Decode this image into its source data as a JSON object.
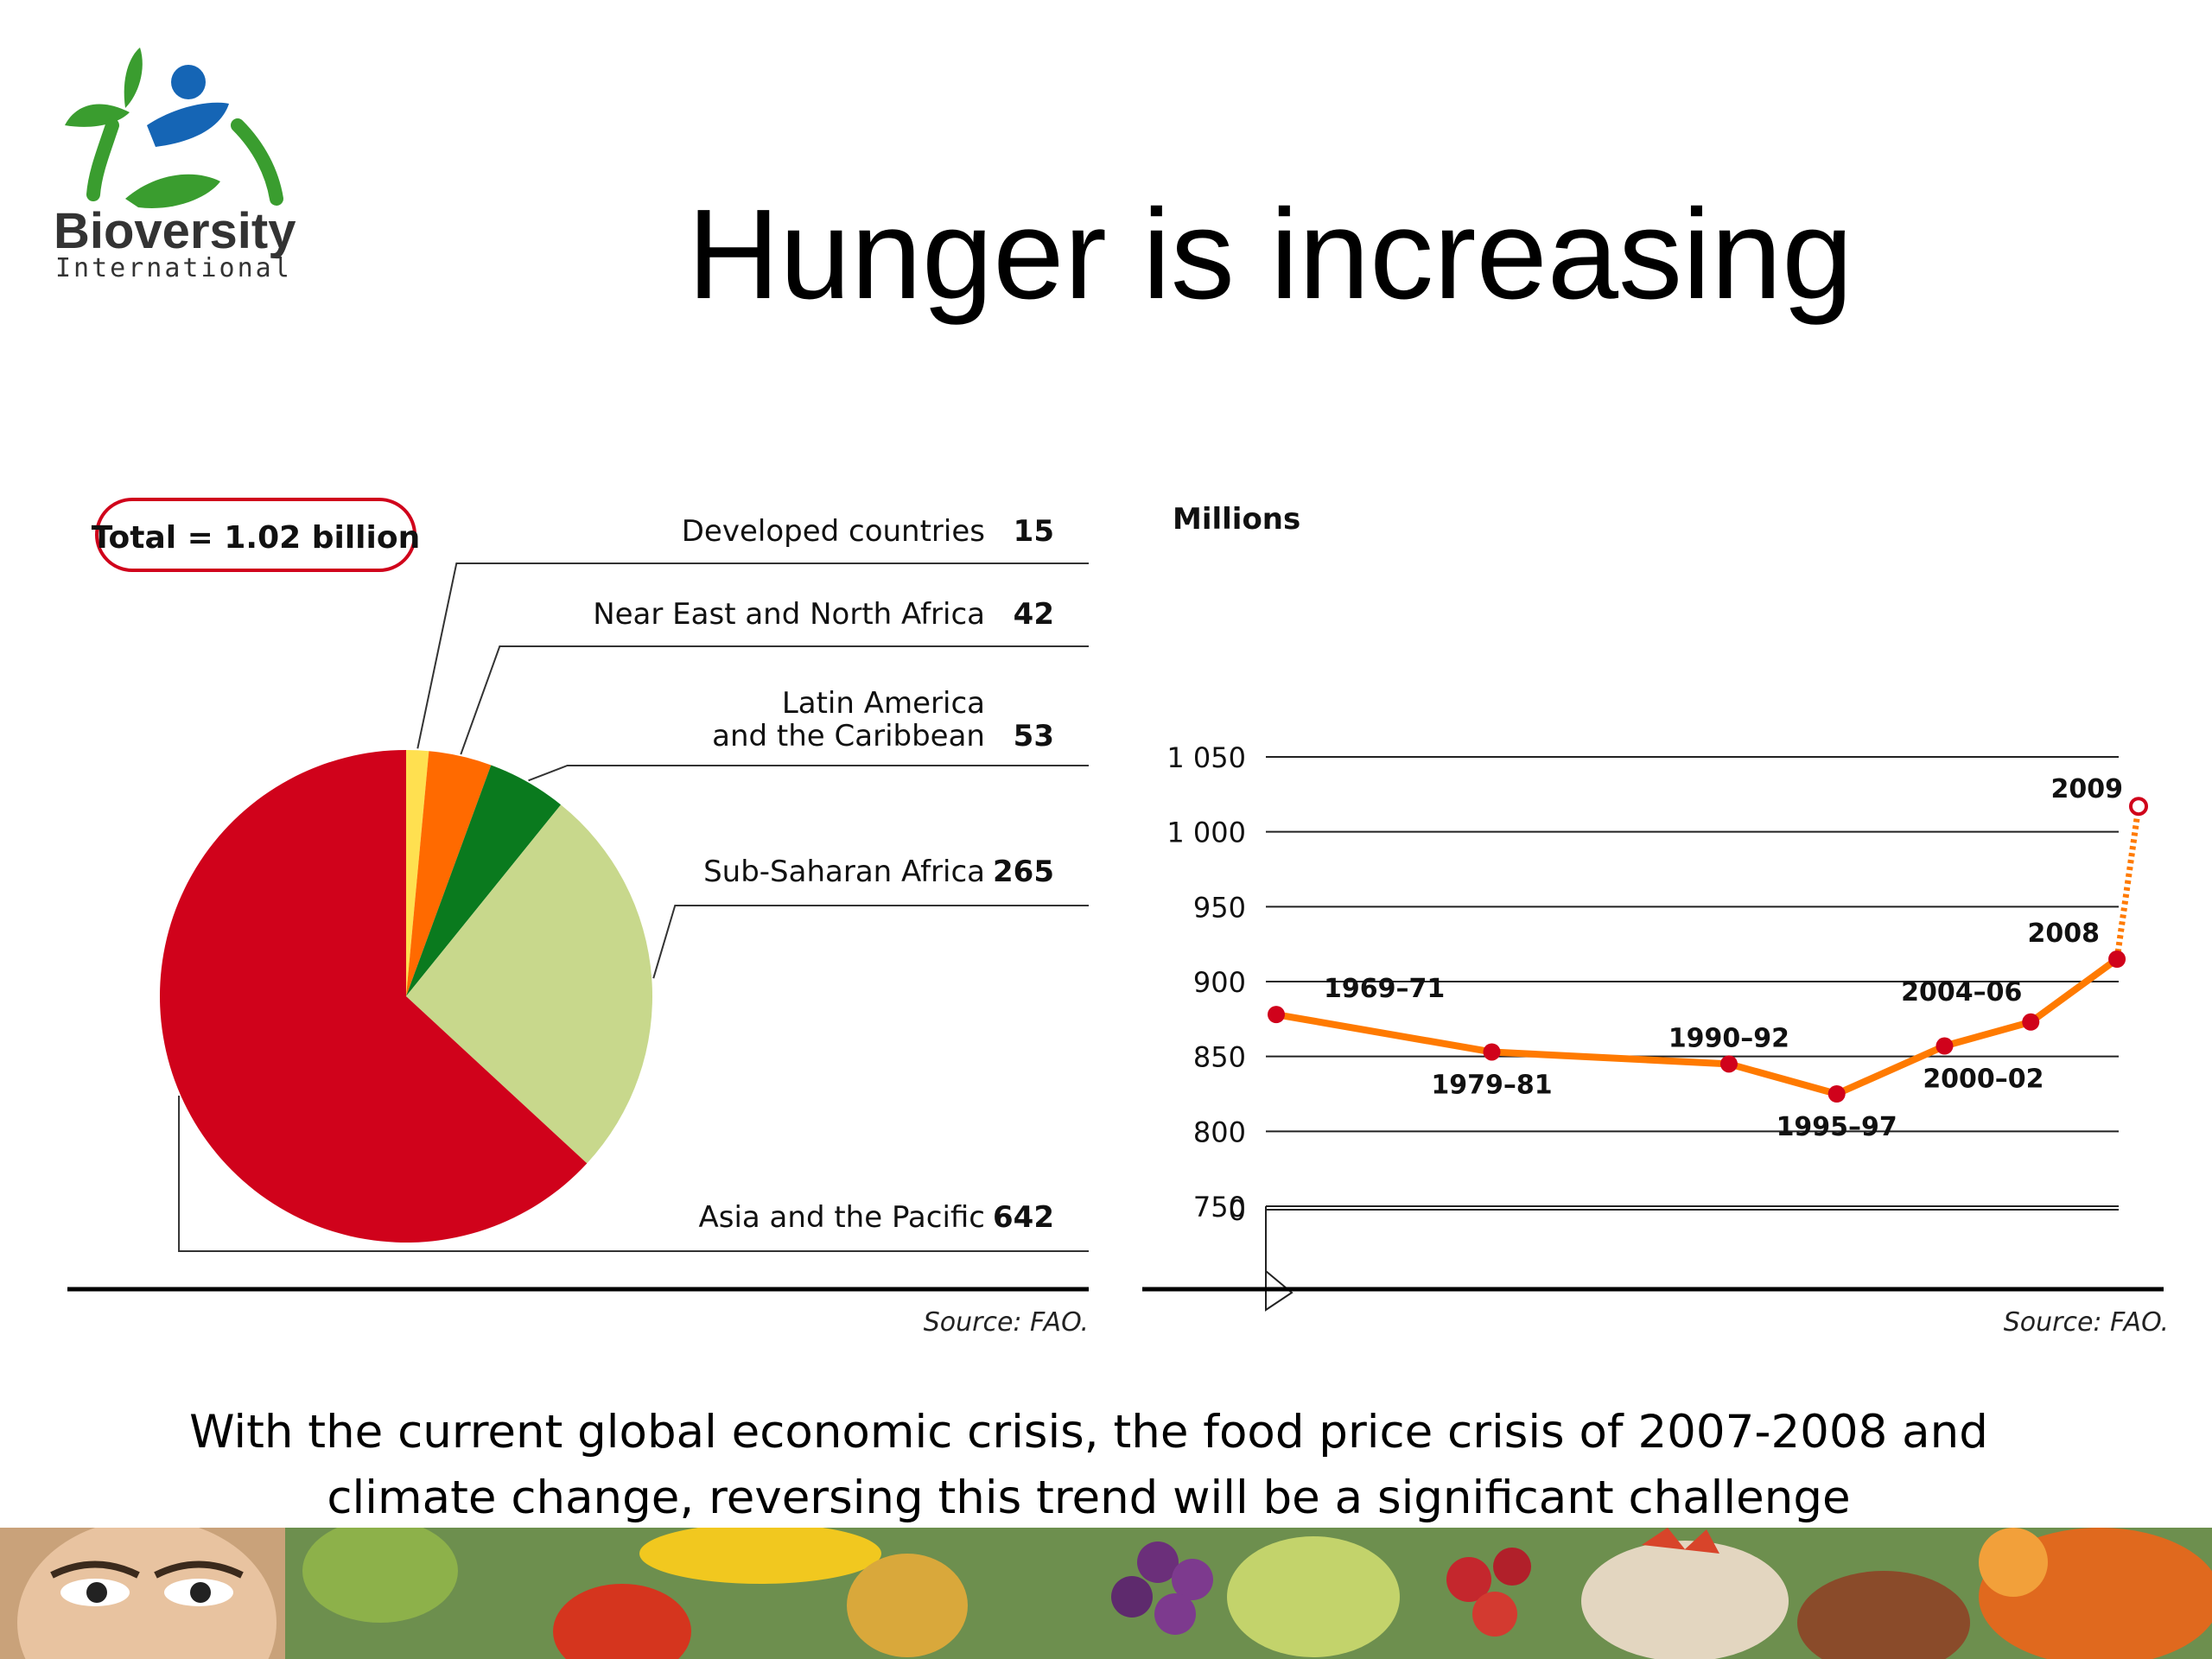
{
  "logo": {
    "name": "Bioversity",
    "subname": "International"
  },
  "title": "Hunger is increasing",
  "caption_line1": "With the current global economic crisis, the food price crisis of 2007-2008 and",
  "caption_line2": "climate change, reversing this trend will be a significant challenge",
  "chart_data": [
    {
      "type": "pie",
      "total_label": "Total = 1.02 billion",
      "source": "Source: FAO.",
      "categories": [
        "Developed countries",
        "Near East and North Africa",
        "Latin America and the Caribbean",
        "Sub-Saharan Africa",
        "Asia and the Pacific"
      ],
      "label_lines": [
        [
          "Developed countries"
        ],
        [
          "Near East and North Africa"
        ],
        [
          "Latin America",
          "and the Caribbean"
        ],
        [
          "Sub-Saharan Africa"
        ],
        [
          "Asia and the Pacific"
        ]
      ],
      "values": [
        15,
        42,
        53,
        265,
        642
      ],
      "colors": [
        "#ffe050",
        "#ff6a00",
        "#0a7a1e",
        "#c8d88c",
        "#d0021b"
      ]
    },
    {
      "type": "line",
      "ylabel": "Millions",
      "source": "Source: FAO.",
      "yticks": [
        1050,
        1000,
        950,
        900,
        850,
        800,
        750,
        0
      ],
      "ytick_labels": [
        "1 050",
        "1 000",
        "950",
        "900",
        "850",
        "800",
        "750",
        "0"
      ],
      "axis_break": [
        0,
        750
      ],
      "ylim": [
        750,
        1050
      ],
      "series": [
        {
          "x": [
            "1969–71",
            "1979–81",
            "1990–92",
            "1995–97",
            "2000–02",
            "2004–06",
            "2008"
          ],
          "values": [
            878,
            853,
            845,
            825,
            857,
            873,
            915
          ],
          "point_labels": [
            "1969–71",
            "1979–81",
            "1990–92",
            "1995–97",
            "2000–02",
            "2004–06",
            "2008"
          ],
          "color": "#ff7a00",
          "marker_color": "#d0021b"
        },
        {
          "x": [
            "2008",
            "2009"
          ],
          "values": [
            915,
            1017
          ],
          "point_labels": [
            "",
            "2009"
          ],
          "projected": true,
          "color": "#ff7a00",
          "marker_color": "#d0021b"
        }
      ]
    }
  ]
}
